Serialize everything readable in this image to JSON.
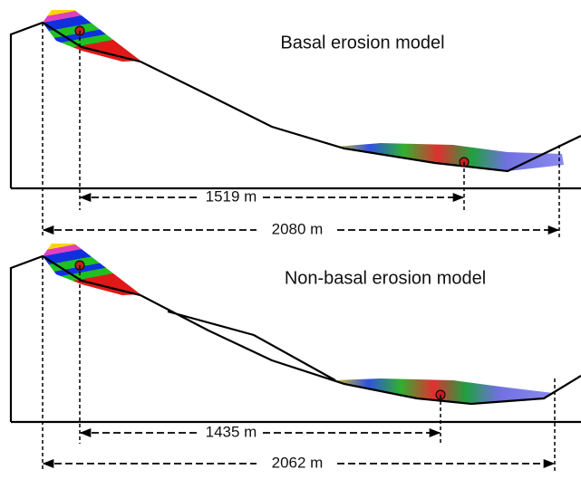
{
  "panels": [
    {
      "title": "Basal erosion model",
      "inner_distance": "1519 m",
      "outer_distance": "2080 m"
    },
    {
      "title": "Non-basal erosion model",
      "inner_distance": "1435 m",
      "outer_distance": "2062 m"
    }
  ]
}
